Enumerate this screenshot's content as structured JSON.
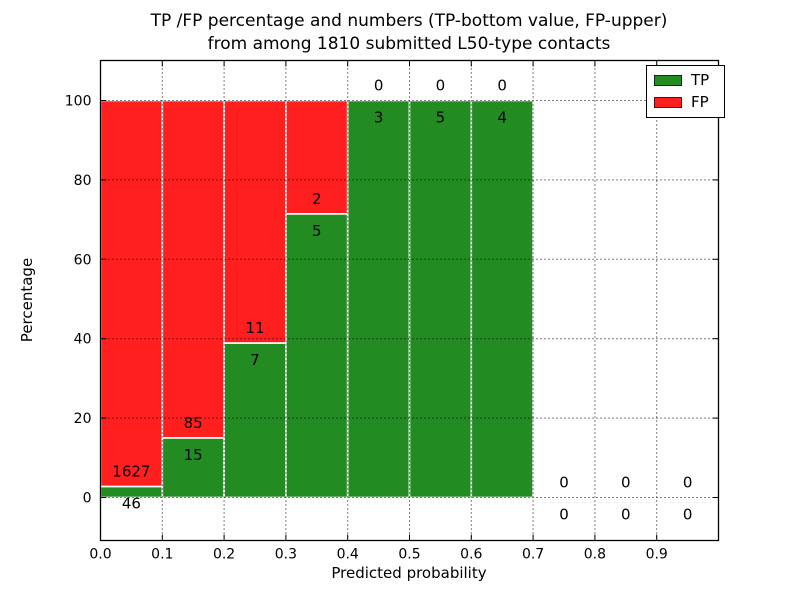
{
  "figure": {
    "title_line1": "TP /FP percentage and numbers (TP-bottom value, FP-upper)",
    "title_line2": "from among 1810 submitted L50-type contacts"
  },
  "chart_data": {
    "type": "bar",
    "stacked": true,
    "title": "TP /FP percentage and numbers (TP-bottom value, FP-upper) from among 1810 submitted L50-type contacts",
    "xlabel": "Predicted probability",
    "ylabel": "Percentage",
    "xlim": [
      0.0,
      1.0
    ],
    "ylim": [
      -10.8,
      110.1
    ],
    "x_tick_labels": [
      "0.0",
      "0.1",
      "0.2",
      "0.3",
      "0.4",
      "0.5",
      "0.6",
      "0.7",
      "0.8",
      "0.9"
    ],
    "y_tick_values": [
      0,
      20,
      40,
      60,
      80,
      100
    ],
    "grid": "dotted, both axes, drawn above bars",
    "total_contacts": 1810,
    "bin_width": 0.1,
    "bins": [
      {
        "x_start": 0.0,
        "x_end": 0.1,
        "tp_count": 46,
        "fp_count": 1627,
        "tp_pct": 2.75,
        "bar": true
      },
      {
        "x_start": 0.1,
        "x_end": 0.2,
        "tp_count": 15,
        "fp_count": 85,
        "tp_pct": 15.0,
        "bar": true
      },
      {
        "x_start": 0.2,
        "x_end": 0.3,
        "tp_count": 7,
        "fp_count": 11,
        "tp_pct": 38.89,
        "bar": true
      },
      {
        "x_start": 0.3,
        "x_end": 0.4,
        "tp_count": 5,
        "fp_count": 2,
        "tp_pct": 71.43,
        "bar": true
      },
      {
        "x_start": 0.4,
        "x_end": 0.5,
        "tp_count": 3,
        "fp_count": 0,
        "tp_pct": 100.0,
        "bar": true
      },
      {
        "x_start": 0.5,
        "x_end": 0.6,
        "tp_count": 5,
        "fp_count": 0,
        "tp_pct": 100.0,
        "bar": true
      },
      {
        "x_start": 0.6,
        "x_end": 0.7,
        "tp_count": 4,
        "fp_count": 0,
        "tp_pct": 100.0,
        "bar": true
      },
      {
        "x_start": 0.7,
        "x_end": 0.8,
        "tp_count": 0,
        "fp_count": 0,
        "tp_pct": 0.0,
        "bar": false
      },
      {
        "x_start": 0.8,
        "x_end": 0.9,
        "tp_count": 0,
        "fp_count": 0,
        "tp_pct": 0.0,
        "bar": false
      },
      {
        "x_start": 0.9,
        "x_end": 1.0,
        "tp_count": 0,
        "fp_count": 0,
        "tp_pct": 0.0,
        "bar": false
      }
    ],
    "legend": {
      "position": "upper-right",
      "entries": [
        {
          "label": "TP",
          "color": "#228b22"
        },
        {
          "label": "FP",
          "color": "#ff1f1f"
        }
      ]
    },
    "colors": {
      "tp": "#228b22",
      "fp": "#ff1f1f",
      "bar_edge": "#ffffff",
      "grid": "#000000",
      "frame": "#000000",
      "background": "#ffffff"
    }
  }
}
